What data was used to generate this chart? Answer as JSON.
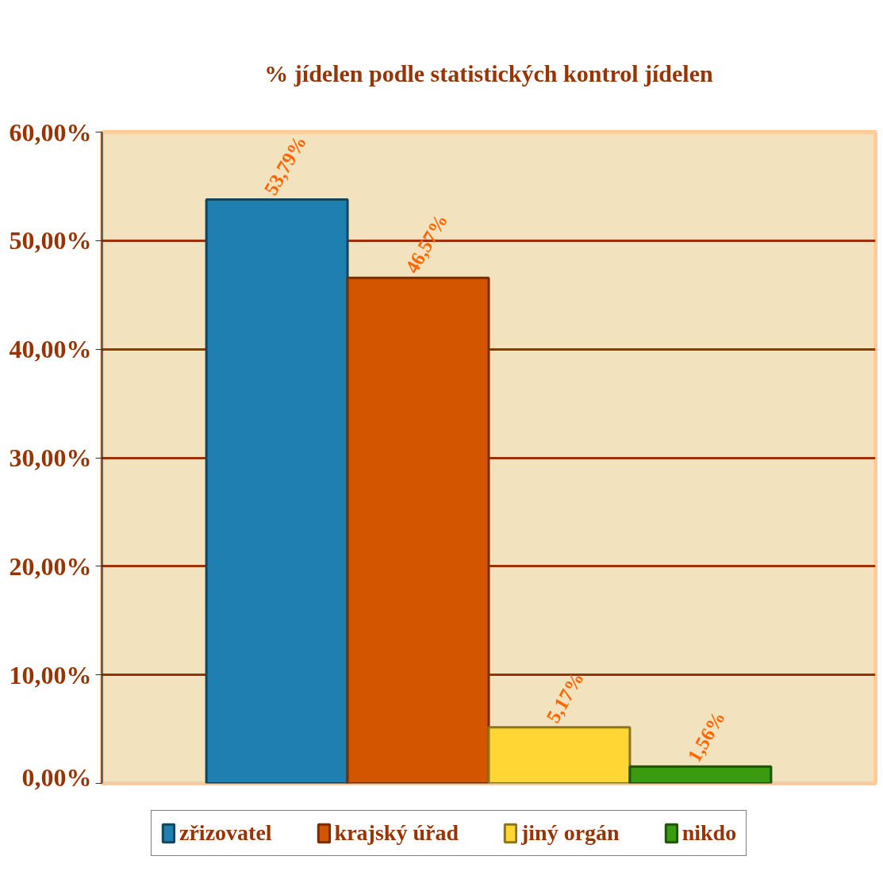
{
  "chart_data": {
    "type": "bar",
    "title": "% jídelen podle statistických kontrol jídelen",
    "categories": [
      null
    ],
    "series": [
      {
        "name": "zřizovatel",
        "color": "#1e7fb0",
        "values": [
          53.79
        ],
        "value_labels": [
          "53,79%"
        ]
      },
      {
        "name": "krajský úřad",
        "color": "#d45500",
        "values": [
          46.57
        ],
        "value_labels": [
          "46,57%"
        ]
      },
      {
        "name": "jiný orgán",
        "color": "#ffd633",
        "values": [
          5.17
        ],
        "value_labels": [
          "5,17%"
        ]
      },
      {
        "name": "nikdo",
        "color": "#3a9a10",
        "values": [
          1.56
        ],
        "value_labels": [
          "1,56%"
        ]
      }
    ],
    "ylim": [
      0,
      60
    ],
    "yticks": [
      {
        "value": 0,
        "label": "0,00%"
      },
      {
        "value": 10,
        "label": "10,00%"
      },
      {
        "value": 20,
        "label": "20,00%"
      },
      {
        "value": 30,
        "label": "30,00%"
      },
      {
        "value": 40,
        "label": "40,00%"
      },
      {
        "value": 50,
        "label": "50,00%"
      },
      {
        "value": 60,
        "label": "60,00%"
      }
    ],
    "grid": "y",
    "legend": "bottom",
    "tick_labels": "y"
  }
}
